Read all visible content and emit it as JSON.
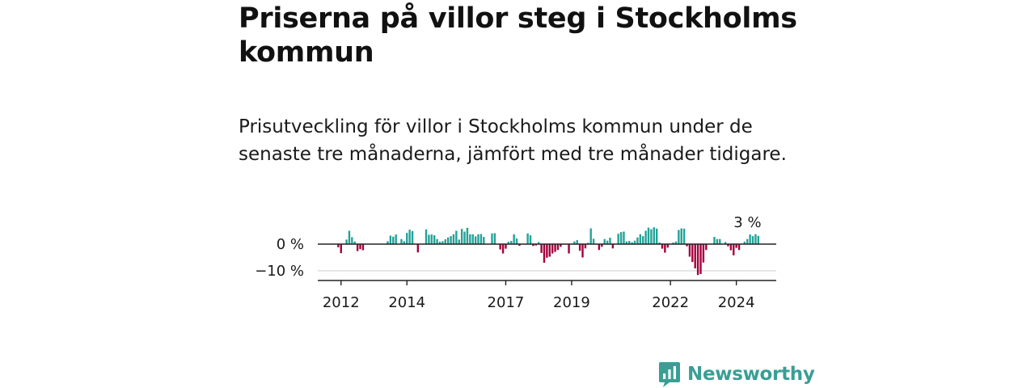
{
  "header": {
    "title": "Priserna på villor steg i Stockholms kommun",
    "subtitle": "Prisutveckling för villor i Stockholms kommun under de senaste tre månaderna, jämfört med tre månader tidigare."
  },
  "brand": {
    "name": "Newsworthy",
    "color": "#3a9e95"
  },
  "colors": {
    "positive": "#22a398",
    "negative": "#a5003c",
    "zero_line": "#222222",
    "grid": "#cccccc"
  },
  "chart_data": {
    "type": "bar",
    "title": "Priserna på villor steg i Stockholms kommun",
    "ylabel": "",
    "xlabel": "",
    "ylim": [
      -14,
      5.4
    ],
    "yticks": [
      {
        "value": 0,
        "label": "0 %"
      },
      {
        "value": -10,
        "label": "−10 %"
      }
    ],
    "xticks": [
      {
        "index": 7,
        "label": "2012"
      },
      {
        "index": 31,
        "label": "2014"
      },
      {
        "index": 67,
        "label": "2017"
      },
      {
        "index": 91,
        "label": "2019"
      },
      {
        "index": 127,
        "label": "2022"
      },
      {
        "index": 151,
        "label": "2024"
      }
    ],
    "annotation": {
      "text": "3 %",
      "index": 158
    },
    "series": [
      {
        "name": "Prisutveckling",
        "values": [
          0,
          0,
          0,
          0,
          0,
          0,
          -1.2,
          -3.4,
          0,
          1.7,
          5.0,
          2.6,
          1.0,
          -2.6,
          -1.9,
          -2.3,
          0,
          0,
          0,
          0,
          0,
          0,
          0,
          0,
          1.1,
          3.2,
          2.8,
          3.6,
          0,
          1.9,
          1.1,
          4.2,
          5.4,
          4.9,
          0,
          -3.1,
          0,
          0,
          5.5,
          3.5,
          3.6,
          3.3,
          1.9,
          0.9,
          1.1,
          1.8,
          2.5,
          3.0,
          3.7,
          5.0,
          1.7,
          5.7,
          4.7,
          6.1,
          3.7,
          3.7,
          2.9,
          3.7,
          3.8,
          2.7,
          0,
          0,
          4.0,
          4.1,
          0,
          -2.0,
          -3.5,
          -1.7,
          0.9,
          1.2,
          3.7,
          2.1,
          -0.6,
          0,
          0,
          4.0,
          3.3,
          -0.7,
          -0.5,
          0.8,
          -3.3,
          -7.0,
          -5.1,
          -4.7,
          -3.5,
          -2.9,
          -2.2,
          -1.0,
          0,
          0,
          -3.5,
          0,
          1.0,
          1.5,
          -2.5,
          -5.0,
          -1.6,
          0.5,
          5.9,
          2.0,
          0,
          -2.2,
          -1.0,
          1.9,
          1.3,
          2.4,
          -1.6,
          0,
          3.9,
          4.5,
          4.7,
          1.0,
          1.2,
          0.7,
          1.3,
          2.5,
          3.7,
          3.0,
          5.0,
          6.2,
          5.6,
          6.3,
          5.8,
          0.6,
          -1.7,
          -3.2,
          -1.3,
          0,
          0.6,
          1.0,
          5.3,
          5.9,
          5.8,
          -0.8,
          -4.7,
          -6.7,
          -9.1,
          -11.6,
          -11.2,
          -6.9,
          -2.2,
          0,
          0,
          2.7,
          1.9,
          1.9,
          0,
          0.8,
          -0.8,
          -2.3,
          -4.2,
          -1.4,
          -2.2,
          0,
          0.9,
          1.9,
          3.6,
          3.0,
          3.7,
          3.1
        ]
      }
    ]
  }
}
